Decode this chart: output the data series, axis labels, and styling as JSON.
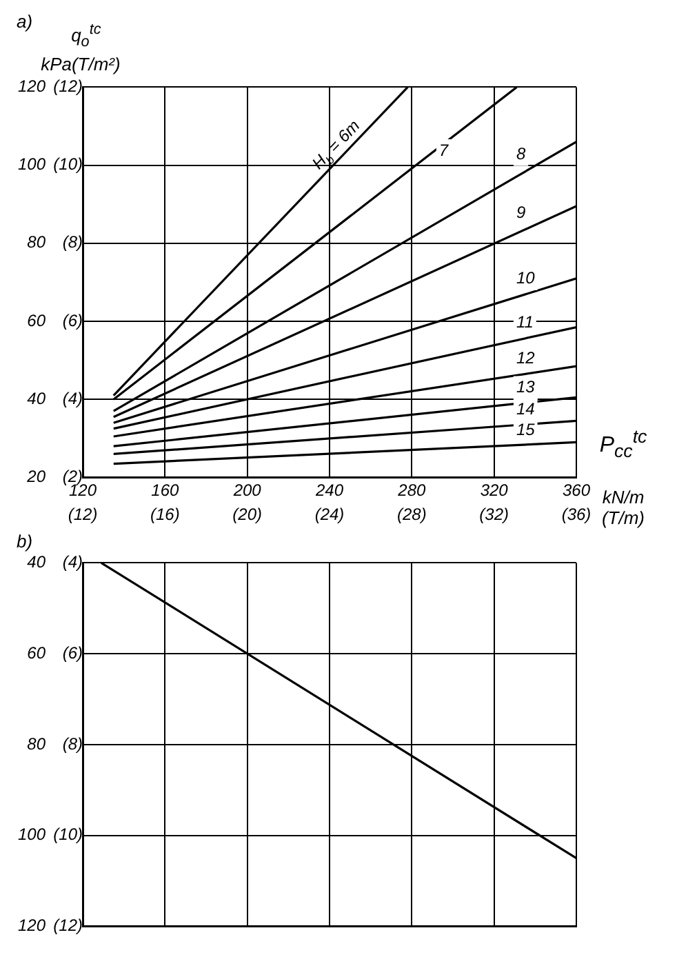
{
  "chart_data": [
    {
      "type": "line",
      "annotations": [
        "a)"
      ],
      "ylabel": "q$_{o}$$^{tc}$\nkPa",
      "y2label": "(T/m²)",
      "xlabel": "P$_{cc}$$^{tc}$\nkN/m\n(T/m)",
      "xlim": [
        120,
        360
      ],
      "xticks": [
        120,
        160,
        200,
        240,
        280,
        320,
        360
      ],
      "x2lim": [
        12,
        36
      ],
      "x2ticks": [
        {
          "value": 12,
          "label": "(12)"
        },
        {
          "value": 16,
          "label": "(16)"
        },
        {
          "value": 20,
          "label": "(20)"
        },
        {
          "value": 24,
          "label": "(24)"
        },
        {
          "value": 28,
          "label": "(28)"
        },
        {
          "value": 32,
          "label": "(32)"
        },
        {
          "value": 36,
          "label": "(36)"
        }
      ],
      "ylim": [
        20,
        120
      ],
      "yticks": [
        20,
        40,
        60,
        80,
        100,
        120
      ],
      "y2lim": [
        2,
        12
      ],
      "y2ticks": [
        {
          "value": 2,
          "label": "(2)"
        },
        {
          "value": 4,
          "label": "(4)"
        },
        {
          "value": 6,
          "label": "(6)"
        },
        {
          "value": 8,
          "label": "(8)"
        },
        {
          "value": 10,
          "label": "(10)"
        },
        {
          "value": 12,
          "label": "(12)"
        }
      ],
      "grid": true,
      "marker": "none",
      "line_style": "solid",
      "series": [
        {
          "name": "H$_{b}$ = 6m",
          "color": "#000000",
          "x": [
            135,
            278
          ],
          "values": [
            41,
            120
          ]
        },
        {
          "name": "7",
          "color": "#000000",
          "x": [
            135,
            331
          ],
          "values": [
            40,
            120
          ]
        },
        {
          "name": "8",
          "color": "#000000",
          "x": [
            135,
            360
          ],
          "values": [
            37,
            106
          ]
        },
        {
          "name": "9",
          "color": "#000000",
          "x": [
            135,
            360
          ],
          "values": [
            35.5,
            89.5
          ]
        },
        {
          "name": "10",
          "color": "#000000",
          "x": [
            135,
            360
          ],
          "values": [
            34,
            71
          ]
        },
        {
          "name": "11",
          "color": "#000000",
          "x": [
            135,
            360
          ],
          "values": [
            32.5,
            58.5
          ]
        },
        {
          "name": "12",
          "color": "#000000",
          "x": [
            135,
            360
          ],
          "values": [
            30.5,
            48.5
          ]
        },
        {
          "name": "13",
          "color": "#000000",
          "x": [
            135,
            360
          ],
          "values": [
            28,
            40.5
          ]
        },
        {
          "name": "14",
          "color": "#000000",
          "x": [
            135,
            360
          ],
          "values": [
            26,
            34.5
          ]
        },
        {
          "name": "15",
          "color": "#000000",
          "x": [
            135,
            360
          ],
          "values": [
            23.5,
            29
          ]
        }
      ]
    },
    {
      "type": "line",
      "annotations": [
        "b)"
      ],
      "xlim": [
        120,
        360
      ],
      "xticks": [
        {
          "value": 120,
          "label": null
        },
        {
          "value": 160,
          "label": null
        },
        {
          "value": 200,
          "label": null
        },
        {
          "value": 240,
          "label": null
        },
        {
          "value": 280,
          "label": null
        },
        {
          "value": 320,
          "label": null
        },
        {
          "value": 360,
          "label": null
        }
      ],
      "ylim": [
        120,
        40
      ],
      "yticks": [
        40,
        60,
        80,
        100,
        120
      ],
      "y2lim": [
        12,
        4
      ],
      "y2ticks": [
        {
          "value": 4,
          "label": "(4)"
        },
        {
          "value": 6,
          "label": "(6)"
        },
        {
          "value": 8,
          "label": "(8)"
        },
        {
          "value": 10,
          "label": "(10)"
        },
        {
          "value": 12,
          "label": "(12)"
        }
      ],
      "grid": true,
      "tick_labels": "y",
      "marker": "none",
      "line_style": "solid",
      "series": [
        {
          "color": "#000000",
          "x": [
            129,
            360
          ],
          "values": [
            40,
            105
          ]
        }
      ]
    }
  ]
}
